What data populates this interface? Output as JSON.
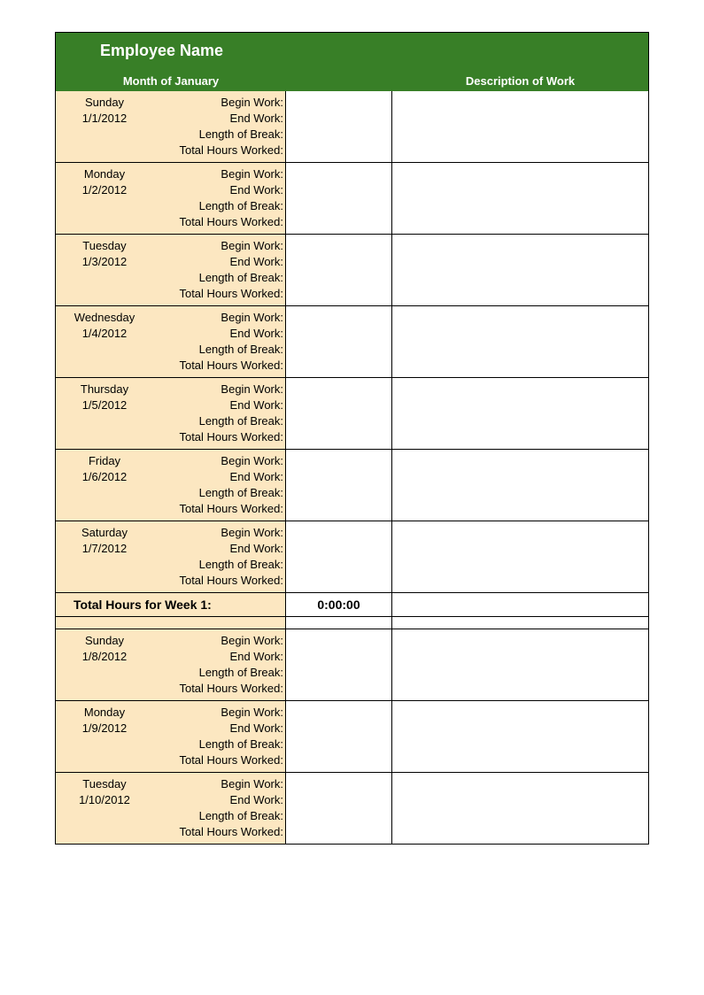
{
  "colors": {
    "header_bg": "#387f27",
    "header_text": "#ffffff",
    "day_bg": "#fce7c1",
    "border": "#000000",
    "page_bg": "#ffffff"
  },
  "typography": {
    "title_fontsize_pt": 14,
    "body_fontsize_pt": 10,
    "font_family": "Arial"
  },
  "header": {
    "title": "Employee Name",
    "month_label": "Month of January",
    "desc_label": "Description of Work"
  },
  "row_labels": {
    "begin": "Begin Work:",
    "end": "End Work:",
    "break": "Length of Break:",
    "total": "Total Hours Worked:"
  },
  "week1": {
    "days": [
      {
        "weekday": "Sunday",
        "date": "1/1/2012",
        "begin": "",
        "end": "",
        "break": "",
        "total": "",
        "desc": ""
      },
      {
        "weekday": "Monday",
        "date": "1/2/2012",
        "begin": "",
        "end": "",
        "break": "",
        "total": "",
        "desc": ""
      },
      {
        "weekday": "Tuesday",
        "date": "1/3/2012",
        "begin": "",
        "end": "",
        "break": "",
        "total": "",
        "desc": ""
      },
      {
        "weekday": "Wednesday",
        "date": "1/4/2012",
        "begin": "",
        "end": "",
        "break": "",
        "total": "",
        "desc": ""
      },
      {
        "weekday": "Thursday",
        "date": "1/5/2012",
        "begin": "",
        "end": "",
        "break": "",
        "total": "",
        "desc": ""
      },
      {
        "weekday": "Friday",
        "date": "1/6/2012",
        "begin": "",
        "end": "",
        "break": "",
        "total": "",
        "desc": ""
      },
      {
        "weekday": "Saturday",
        "date": "1/7/2012",
        "begin": "",
        "end": "",
        "break": "",
        "total": "",
        "desc": ""
      }
    ],
    "total_label": "Total Hours for Week 1:",
    "total_value": "0:00:00"
  },
  "week2": {
    "days": [
      {
        "weekday": "Sunday",
        "date": "1/8/2012",
        "begin": "",
        "end": "",
        "break": "",
        "total": "",
        "desc": ""
      },
      {
        "weekday": "Monday",
        "date": "1/9/2012",
        "begin": "",
        "end": "",
        "break": "",
        "total": "",
        "desc": ""
      },
      {
        "weekday": "Tuesday",
        "date": "1/10/2012",
        "begin": "",
        "end": "",
        "break": "",
        "total": "",
        "desc": ""
      }
    ]
  }
}
